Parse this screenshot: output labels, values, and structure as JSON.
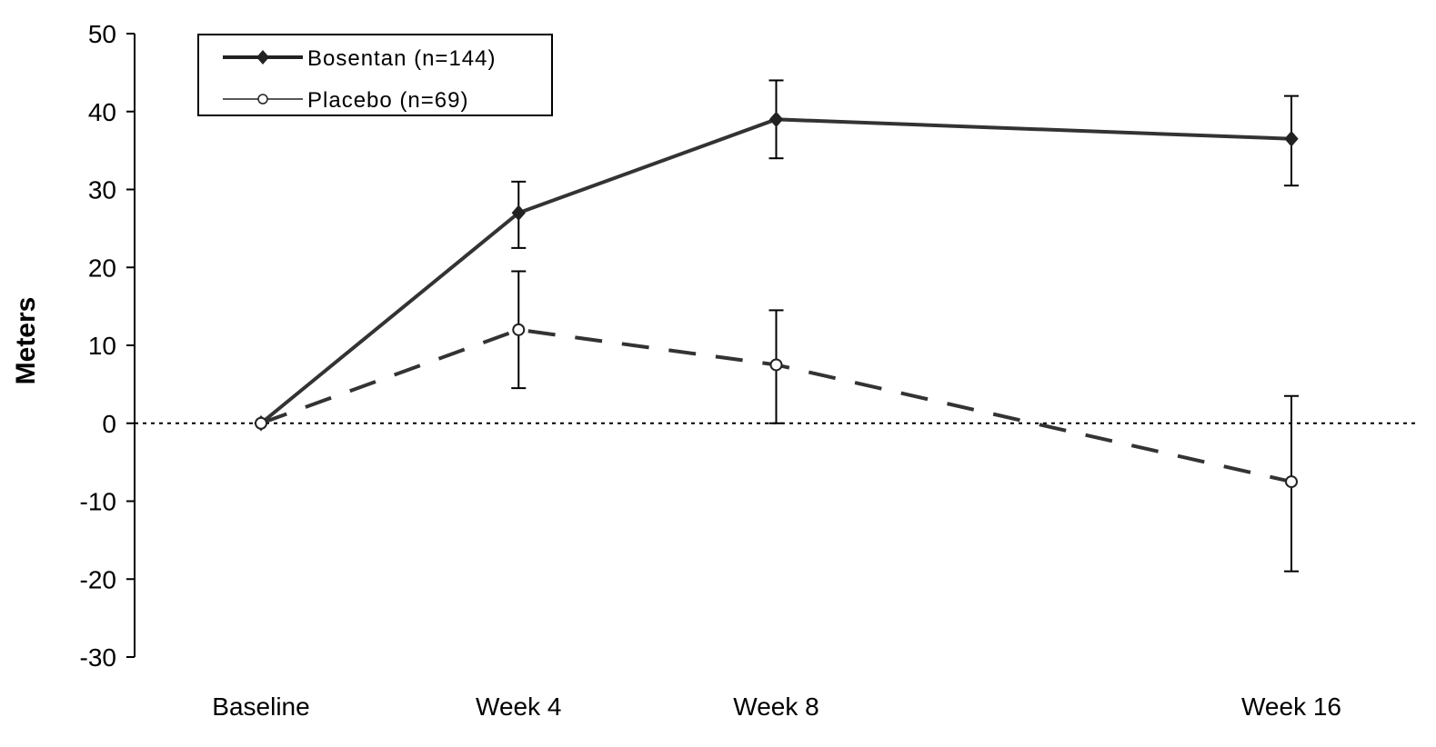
{
  "chart_data": {
    "type": "line",
    "title": "",
    "xlabel": "",
    "ylabel": "Meters",
    "categories": [
      "Baseline",
      "Week 4",
      "Week 8",
      "Week 16"
    ],
    "ylim": [
      -30,
      50
    ],
    "yticks": [
      50,
      40,
      30,
      20,
      10,
      0,
      -10,
      -20,
      -30
    ],
    "x_positions": [
      0,
      4,
      8,
      16
    ],
    "grid": false,
    "reference_line": 0,
    "legend_placement": "top-left",
    "series": [
      {
        "name": "Bosentan (n=144)",
        "color": "#333333",
        "line_style": "solid",
        "marker": "filled-diamond",
        "values": [
          0,
          27,
          39,
          36.5
        ],
        "error_low": [
          null,
          22.5,
          34,
          30.5
        ],
        "error_high": [
          null,
          31,
          44,
          42
        ]
      },
      {
        "name": "Placebo (n=69)",
        "color": "#333333",
        "line_style": "dashed",
        "marker": "open-circle",
        "values": [
          0,
          12,
          7.5,
          -7.5
        ],
        "error_low": [
          null,
          4.5,
          0,
          -19
        ],
        "error_high": [
          null,
          19.5,
          14.5,
          3.5
        ]
      }
    ]
  }
}
